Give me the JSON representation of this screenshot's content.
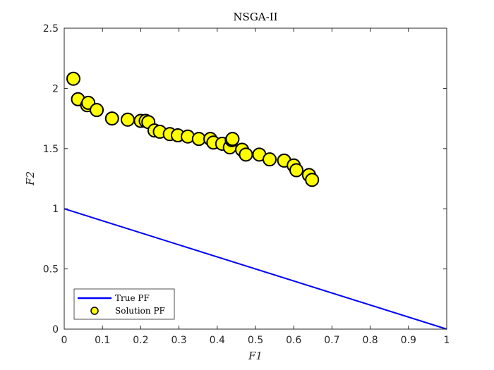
{
  "chart_data": {
    "type": "scatter",
    "title": "NSGA-II",
    "xlabel": "F1",
    "ylabel": "F2",
    "xlim": [
      0,
      1
    ],
    "ylim": [
      0,
      2.5
    ],
    "xticks": [
      0,
      0.1,
      0.2,
      0.3,
      0.4,
      0.5,
      0.6,
      0.7,
      0.8,
      0.9,
      1
    ],
    "yticks": [
      0,
      0.5,
      1,
      1.5,
      2,
      2.5
    ],
    "xtick_labels": [
      "0",
      "0.1",
      "0.2",
      "0.3",
      "0.4",
      "0.5",
      "0.6",
      "0.7",
      "0.8",
      "0.9",
      "1"
    ],
    "ytick_labels": [
      "0",
      "0.5",
      "1",
      "1.5",
      "2",
      "2.5"
    ],
    "legend_position": "bottom-left",
    "grid": false,
    "series": [
      {
        "name": "True PF",
        "kind": "line",
        "color": "#0000ff",
        "x": [
          0,
          1
        ],
        "y": [
          1,
          0
        ]
      },
      {
        "name": "Solution PF",
        "kind": "scatter",
        "color": "#ffff00",
        "edge_color": "#000000",
        "x": [
          0.024,
          0.036,
          0.06,
          0.063,
          0.085,
          0.125,
          0.166,
          0.2,
          0.213,
          0.22,
          0.236,
          0.25,
          0.276,
          0.297,
          0.323,
          0.352,
          0.382,
          0.39,
          0.413,
          0.433,
          0.438,
          0.44,
          0.465,
          0.475,
          0.51,
          0.537,
          0.575,
          0.6,
          0.607,
          0.64,
          0.648
        ],
        "y": [
          2.08,
          1.91,
          1.86,
          1.88,
          1.82,
          1.75,
          1.74,
          1.73,
          1.73,
          1.72,
          1.65,
          1.64,
          1.62,
          1.61,
          1.6,
          1.58,
          1.58,
          1.55,
          1.54,
          1.51,
          1.57,
          1.58,
          1.49,
          1.45,
          1.45,
          1.41,
          1.4,
          1.36,
          1.32,
          1.28,
          1.24
        ]
      }
    ]
  }
}
